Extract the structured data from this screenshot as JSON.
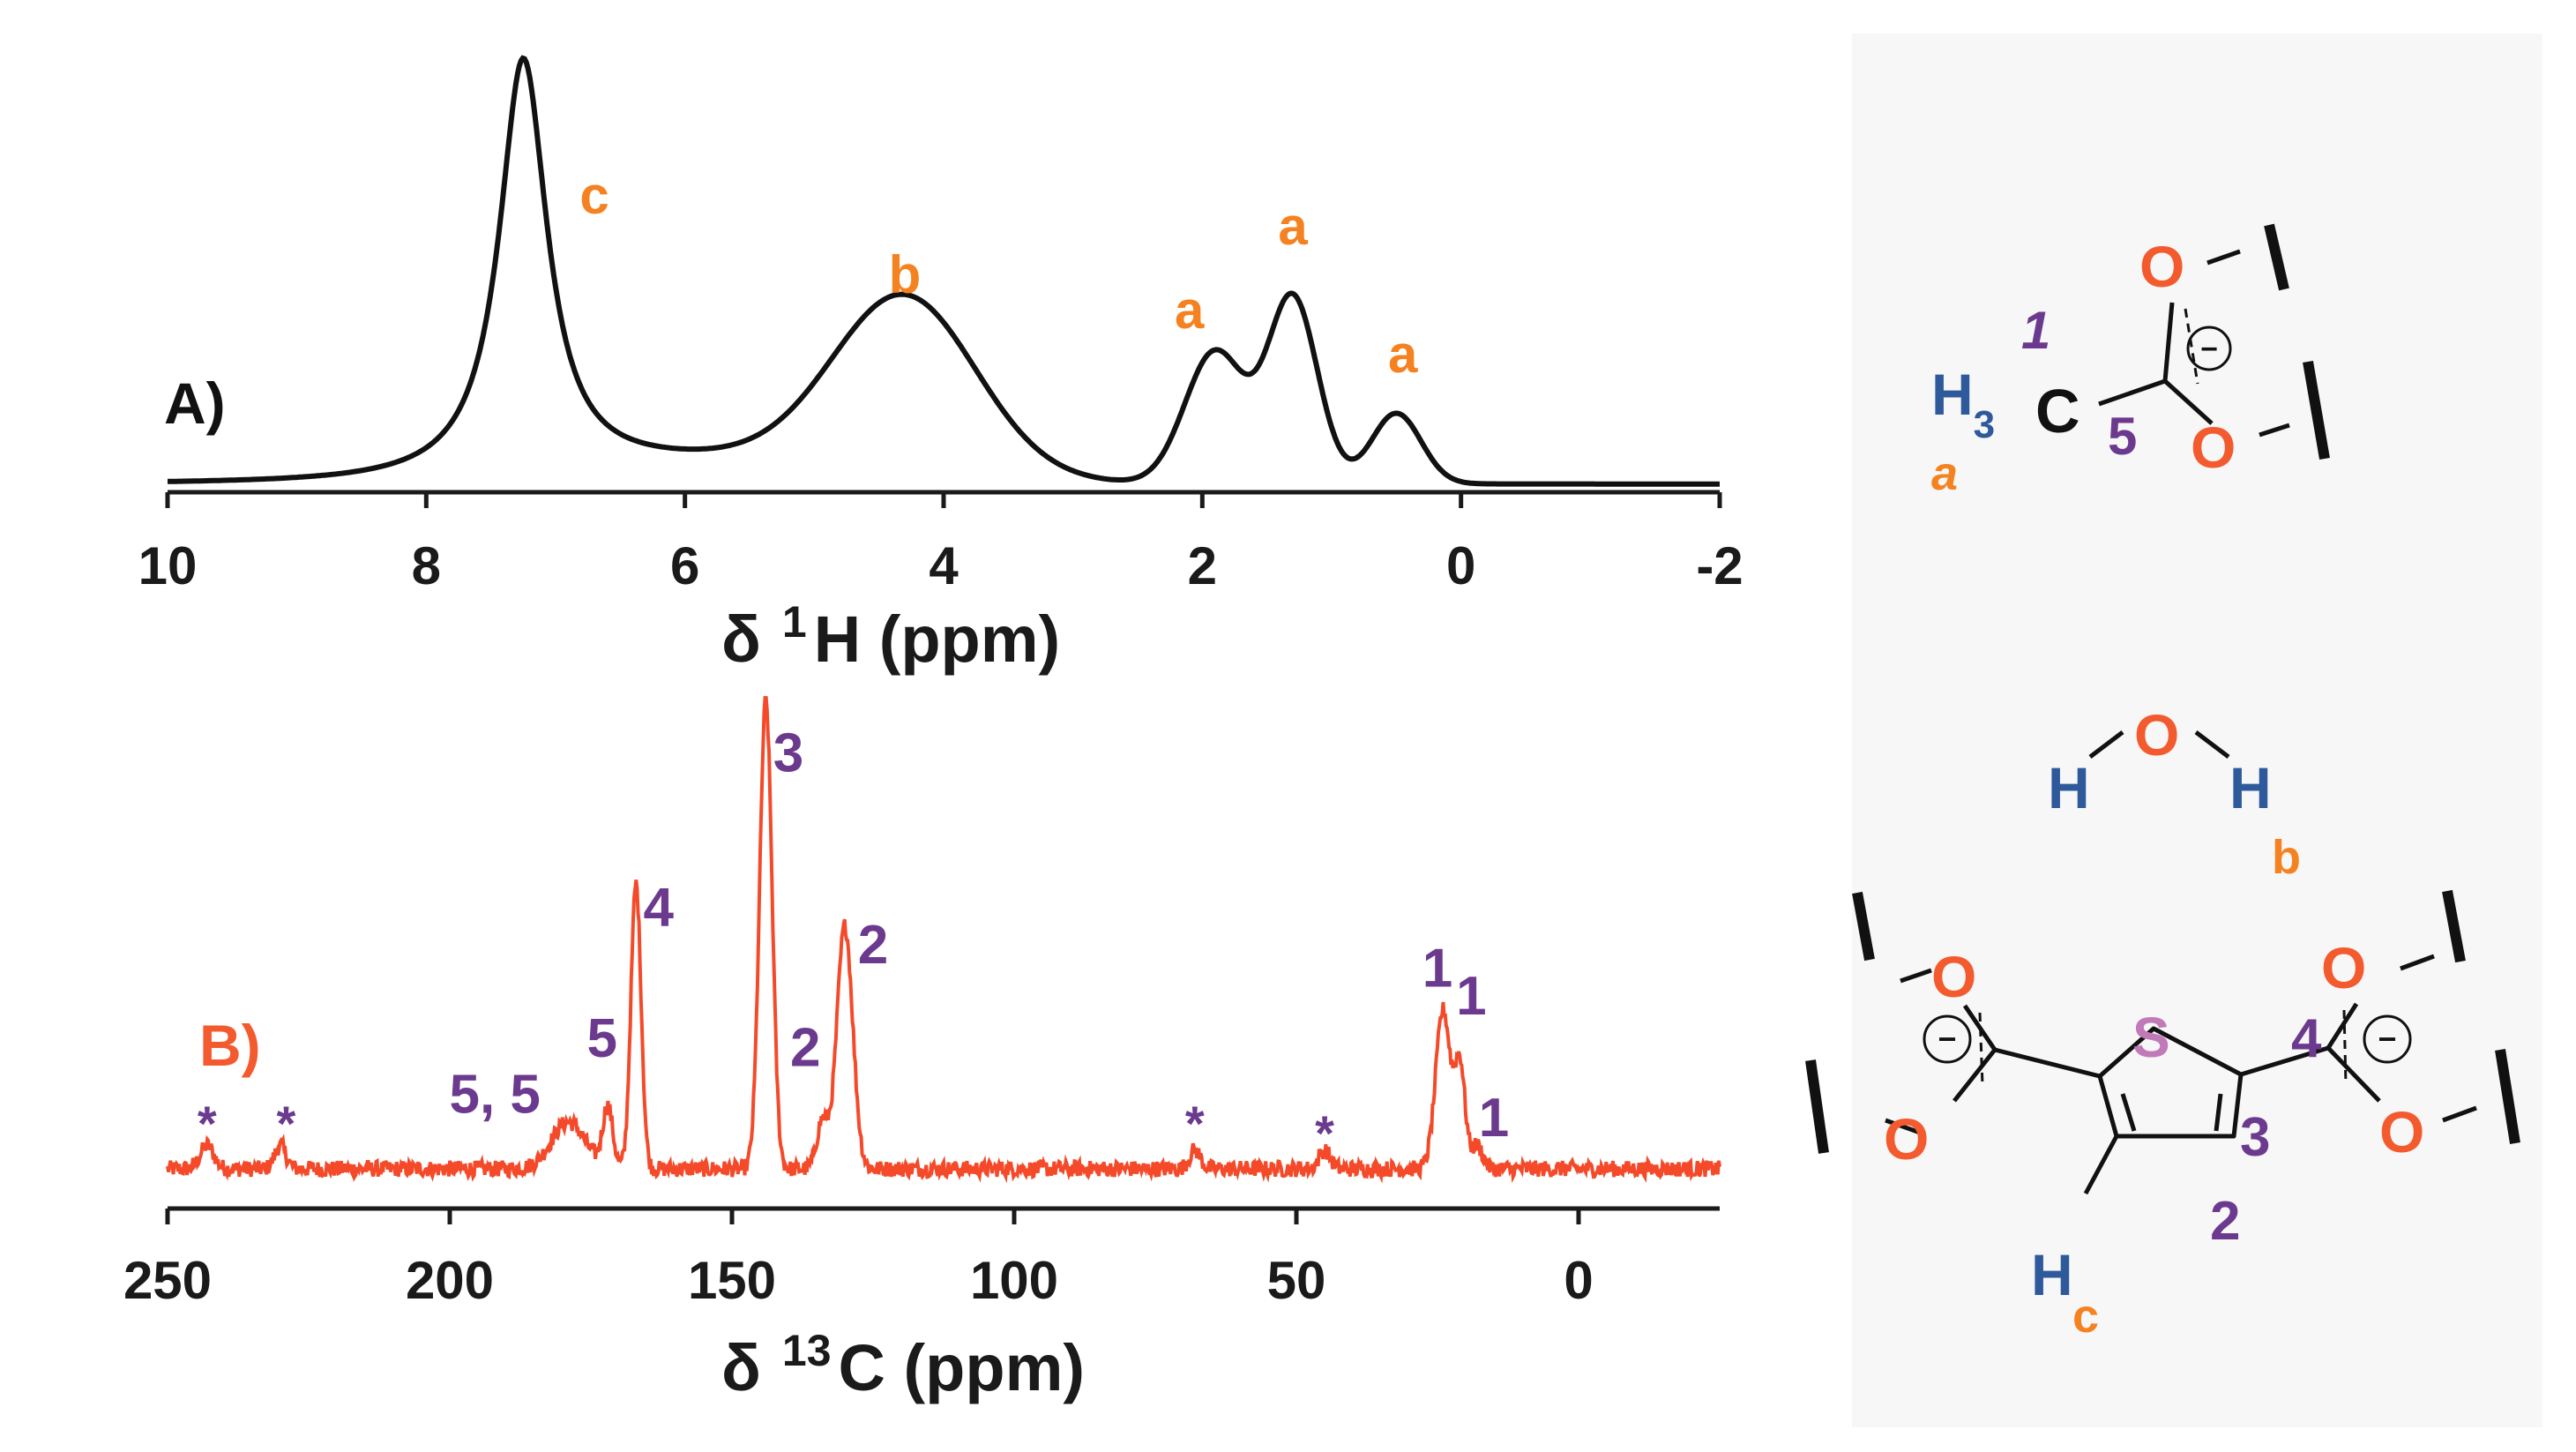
{
  "colors": {
    "spectrum_a": "#111111",
    "spectrum_b": "#f44a2a",
    "panel_a_label": "#111111",
    "panel_b_label": "#f44a2a",
    "h_labels": "#f58220",
    "c_labels": "#6b3a8e",
    "hydrogen": "#2e5a9c",
    "oxygen": "#f35b2e",
    "sulfur": "#c17ab8",
    "background": "#ffffff",
    "right_panel_bg": "#f7f7f7"
  },
  "panel_a": {
    "label": "A)"
  },
  "panel_b": {
    "label": "B)"
  },
  "chart_data": [
    {
      "type": "line",
      "panel": "A)",
      "xlabel": "δ ¹H (ppm)",
      "xlabel_parts": {
        "prefix": "δ",
        "sup": "1",
        "main": "H (ppm)"
      },
      "xlim": [
        10,
        -2
      ],
      "x_reversed": true,
      "ticks": [
        10,
        8,
        6,
        4,
        2,
        0,
        -2
      ],
      "tick_labels": [
        "10",
        "8",
        "6",
        "4",
        "2",
        "0",
        "-2"
      ],
      "grid": false,
      "peaks": [
        {
          "center": 7.25,
          "height": 0.95,
          "width": 0.45,
          "kind": "lorentz"
        },
        {
          "center": 4.3,
          "height": 0.4,
          "width": 1.3,
          "kind": "gauss"
        },
        {
          "center": 1.9,
          "height": 0.3,
          "width": 0.55,
          "kind": "gauss"
        },
        {
          "center": 1.3,
          "height": 0.42,
          "width": 0.45,
          "kind": "gauss"
        },
        {
          "center": 0.5,
          "height": 0.16,
          "width": 0.45,
          "kind": "gauss"
        }
      ],
      "annotations": [
        {
          "text": "c",
          "x": 6.7,
          "y": 0.62
        },
        {
          "text": "b",
          "x": 4.3,
          "y": 0.44
        },
        {
          "text": "a",
          "x": 2.1,
          "y": 0.36
        },
        {
          "text": "a",
          "x": 1.3,
          "y": 0.55
        },
        {
          "text": "a",
          "x": 0.45,
          "y": 0.26
        }
      ]
    },
    {
      "type": "line",
      "panel": "B)",
      "xlabel": "δ ¹³C (ppm)",
      "xlabel_parts": {
        "prefix": "δ",
        "sup": "13",
        "main": "C (ppm)"
      },
      "xlim": [
        250,
        -25
      ],
      "x_reversed": true,
      "ticks": [
        250,
        200,
        150,
        100,
        50,
        0
      ],
      "tick_labels": [
        "250",
        "200",
        "150",
        "100",
        "50",
        "0"
      ],
      "grid": false,
      "peaks": [
        {
          "center": 144,
          "height": 1.0,
          "width": 1.1
        },
        {
          "center": 167,
          "height": 0.61,
          "width": 0.9
        },
        {
          "center": 130,
          "height": 0.52,
          "width": 1.4
        },
        {
          "center": 134,
          "height": 0.1,
          "width": 1.0
        },
        {
          "center": 172,
          "height": 0.13,
          "width": 0.9
        },
        {
          "center": 179,
          "height": 0.1,
          "width": 3.0
        },
        {
          "center": 24,
          "height": 0.34,
          "width": 1.3
        },
        {
          "center": 21,
          "height": 0.22,
          "width": 0.9
        },
        {
          "center": 18,
          "height": 0.05,
          "width": 1.0
        },
        {
          "center": 243,
          "height": 0.05,
          "width": 1.2
        },
        {
          "center": 230,
          "height": 0.05,
          "width": 1.0
        },
        {
          "center": 68,
          "height": 0.04,
          "width": 1.0
        },
        {
          "center": 45,
          "height": 0.04,
          "width": 1.0
        }
      ],
      "annotations": [
        {
          "text": "3",
          "x": 140,
          "y": 0.85
        },
        {
          "text": "4",
          "x": 163,
          "y": 0.52
        },
        {
          "text": "2",
          "x": 125,
          "y": 0.44
        },
        {
          "text": "2",
          "x": 137,
          "y": 0.22
        },
        {
          "text": "5",
          "x": 173,
          "y": 0.24
        },
        {
          "text": "5, 5",
          "x": 192,
          "y": 0.12
        },
        {
          "text": "1",
          "x": 25,
          "y": 0.39
        },
        {
          "text": "1",
          "x": 19,
          "y": 0.33
        },
        {
          "text": "1",
          "x": 15,
          "y": 0.07
        },
        {
          "text": "*",
          "x": 243,
          "y": 0.06
        },
        {
          "text": "*",
          "x": 229,
          "y": 0.06
        },
        {
          "text": "*",
          "x": 68,
          "y": 0.06
        },
        {
          "text": "*",
          "x": 45,
          "y": 0.04
        }
      ]
    }
  ],
  "structures": {
    "acetate": {
      "o_top": "O",
      "o_bottom": "O",
      "carbon": "C",
      "h": "H",
      "h_sub": "3",
      "label_a": "a",
      "c_num_1": "1",
      "c_num_5": "5",
      "charge": "−"
    },
    "water": {
      "h_left": "H",
      "o": "O",
      "h_right": "H",
      "label_b": "b"
    },
    "thiophene": {
      "s": "S",
      "o_tl": "O",
      "o_bl": "O",
      "o_tr": "O",
      "o_br": "O",
      "h": "H",
      "label_c": "c",
      "c_num_2": "2",
      "c_num_3": "3",
      "c_num_4": "4",
      "charge": "−"
    }
  }
}
